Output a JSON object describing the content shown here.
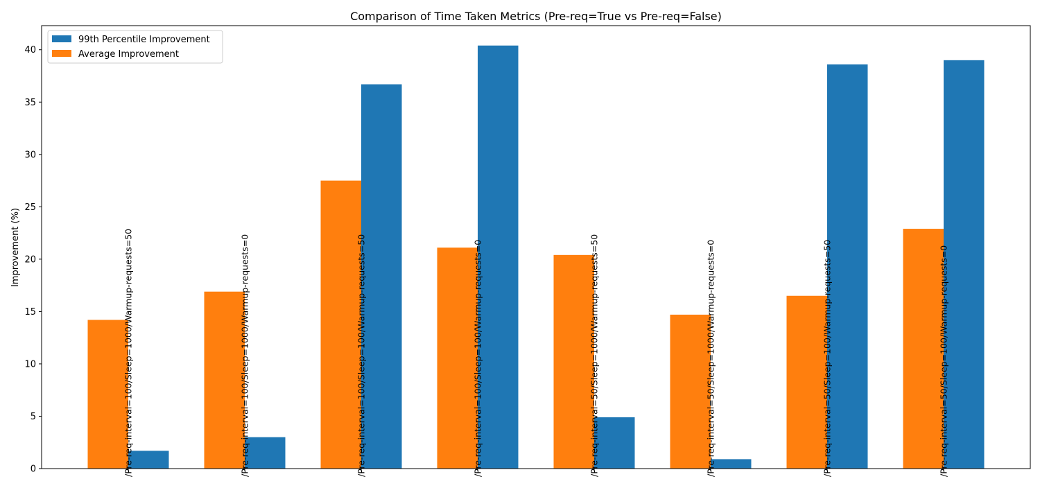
{
  "chart_data": {
    "type": "bar",
    "title": "Comparison of Time Taken Metrics (Pre-req=True vs Pre-req=False)",
    "xlabel": "",
    "ylabel": "Improvement (%)",
    "ylim": [
      0,
      42.3
    ],
    "yticks": [
      0,
      5,
      10,
      15,
      20,
      25,
      30,
      35,
      40
    ],
    "grid": false,
    "legend_position": "top-left",
    "categories": [
      "/Pre-req-interval=100/Sleep=1000/Warmup-requests=50",
      "/Pre-req-interval=100/Sleep=1000/Warmup-requests=0",
      "/Pre-req-interval=100/Sleep=100/Warmup-requests=50",
      "/Pre-req-interval=100/Sleep=100/Warmup-requests=0",
      "/Pre-req-interval=50/Sleep=1000/Warmup-requests=50",
      "/Pre-req-interval=50/Sleep=1000/Warmup-requests=0",
      "/Pre-req-interval=50/Sleep=100/Warmup-requests=50",
      "/Pre-req-interval=50/Sleep=100/Warmup-requests=0"
    ],
    "series": [
      {
        "name": "99th Percentile Improvement",
        "color": "#1f77b4",
        "values": [
          1.7,
          3.0,
          36.7,
          40.4,
          4.9,
          0.9,
          38.6,
          39.0
        ]
      },
      {
        "name": "Average Improvement",
        "color": "#ff7f0e",
        "values": [
          14.2,
          16.9,
          27.5,
          21.1,
          20.4,
          14.7,
          16.5,
          22.9
        ]
      }
    ]
  }
}
